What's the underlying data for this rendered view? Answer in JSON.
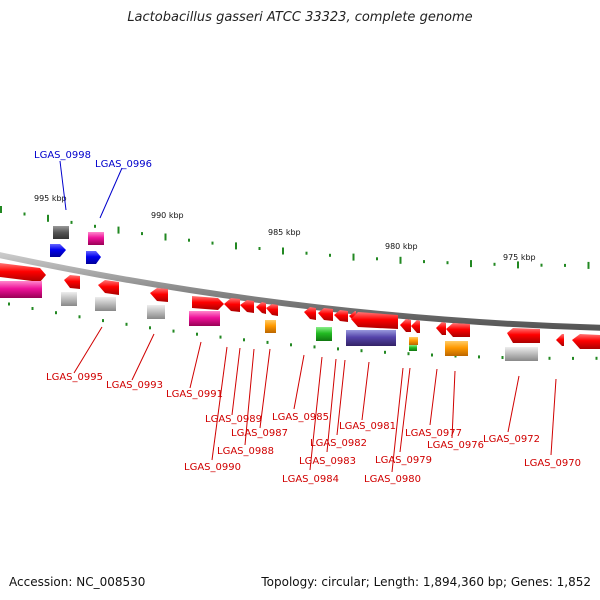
{
  "title": "Lactobacillus gasseri ATCC 33323, complete genome",
  "footer": {
    "accession": "Accession: NC_008530",
    "info": "Topology: circular; Length: 1,894,360 bp; Genes: 1,852"
  },
  "scale_labels": [
    "995 kbp",
    "990 kbp",
    "985 kbp",
    "980 kbp",
    "975 kbp"
  ],
  "genes_top": [
    "LGAS_0998",
    "LGAS_0996"
  ],
  "genes_bottom": [
    "LGAS_0995",
    "LGAS_0993",
    "LGAS_0991",
    "LGAS_0990",
    "LGAS_0989",
    "LGAS_0988",
    "LGAS_0987",
    "LGAS_0985",
    "LGAS_0984",
    "LGAS_0983",
    "LGAS_0982",
    "LGAS_0981",
    "LGAS_0980",
    "LGAS_0979",
    "LGAS_0977",
    "LGAS_0976",
    "LGAS_0972",
    "LGAS_0970"
  ],
  "colors": {
    "forward_strand": "#ee0000",
    "reverse_strand": "#ee0000",
    "label_forward": "#0000cc",
    "label_reverse": "#d00000",
    "backbone": "#888888",
    "ticks": "#228822"
  }
}
